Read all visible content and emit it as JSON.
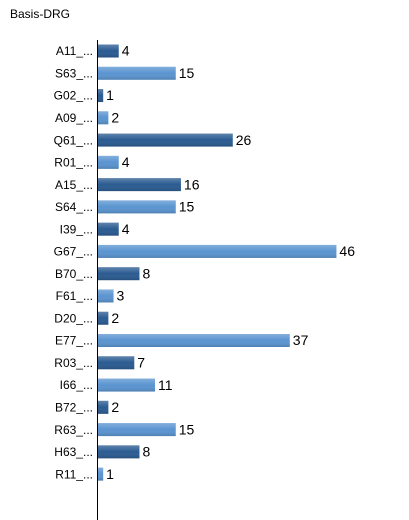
{
  "chart_data": {
    "type": "bar",
    "orientation": "horizontal",
    "title": "Basis-DRG",
    "categories": [
      "A11_...",
      "S63_...",
      "G02_...",
      "A09_...",
      "Q61_...",
      "R01_...",
      "A15_...",
      "S64_...",
      "I39_...",
      "G67_...",
      "B70_...",
      "F61_...",
      "D20_...",
      "E77_...",
      "R03_...",
      "I66_...",
      "B72_...",
      "R63_...",
      "H63_...",
      "R11_..."
    ],
    "values": [
      4,
      15,
      1,
      2,
      26,
      4,
      16,
      15,
      4,
      46,
      8,
      3,
      2,
      37,
      7,
      11,
      2,
      15,
      8,
      1
    ],
    "colors": [
      "#2a5b91",
      "#5a94d0"
    ],
    "xlim": [
      0,
      60
    ]
  }
}
